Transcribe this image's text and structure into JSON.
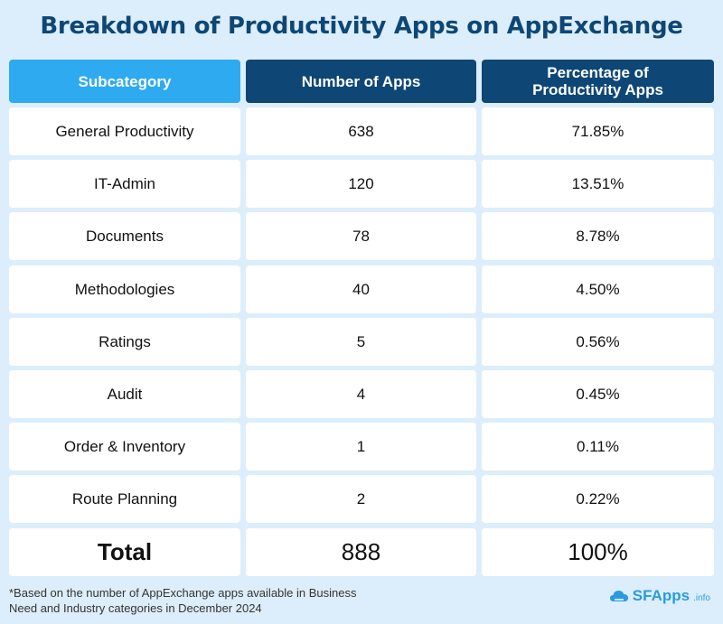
{
  "title": "Breakdown of Productivity Apps on AppExchange",
  "headers": {
    "subcategory": "Subcategory",
    "number": "Number of Apps",
    "percentage_line1": "Percentage of",
    "percentage_line2": "Productivity Apps"
  },
  "rows": [
    {
      "subcategory": "General Productivity",
      "count": "638",
      "percent": "71.85%"
    },
    {
      "subcategory": "IT-Admin",
      "count": "120",
      "percent": "13.51%"
    },
    {
      "subcategory": "Documents",
      "count": "78",
      "percent": "8.78%"
    },
    {
      "subcategory": "Methodologies",
      "count": "40",
      "percent": "4.50%"
    },
    {
      "subcategory": "Ratings",
      "count": "5",
      "percent": "0.56%"
    },
    {
      "subcategory": "Audit",
      "count": "4",
      "percent": "0.45%"
    },
    {
      "subcategory": "Order & Inventory",
      "count": "1",
      "percent": "0.11%"
    },
    {
      "subcategory": "Route Planning",
      "count": "2",
      "percent": "0.22%"
    }
  ],
  "total": {
    "label": "Total",
    "count": "888",
    "percent": "100%"
  },
  "footnote": {
    "line1": "*Based on the number of AppExchange apps available in Business",
    "line2": "Need and Industry categories in December 2024"
  },
  "logo": {
    "name": "SFApps",
    "suffix": ".info",
    "icon": "cloud-icon"
  },
  "colors": {
    "background": "#dceefb",
    "title": "#0e4775",
    "header_dark": "#0e4775",
    "header_light": "#2eaaf0",
    "cell": "#ffffff"
  }
}
